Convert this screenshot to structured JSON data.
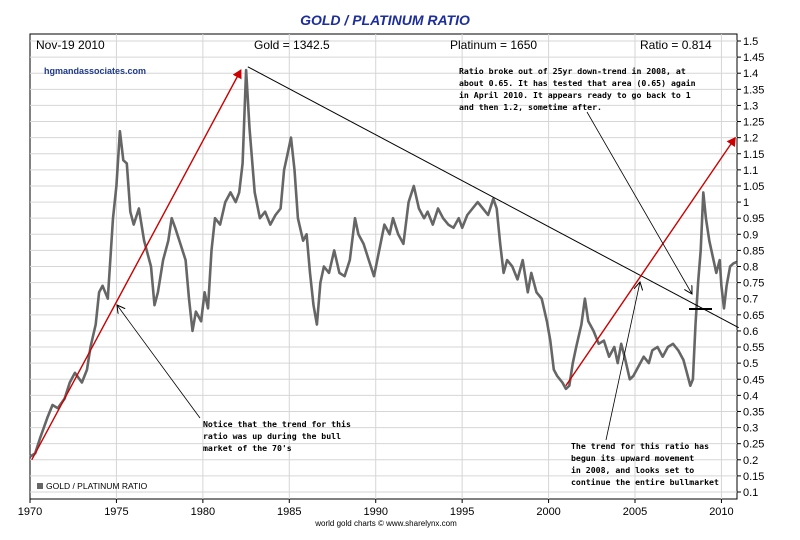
{
  "chart_data": {
    "type": "line",
    "title": "GOLD / PLATINUM RATIO",
    "header": {
      "date": "Nov-19  2010",
      "gold": "Gold = 1342.5",
      "platinum": "Platinum = 1650",
      "ratio": "Ratio = 0.814"
    },
    "website": "hgmandassociates.com",
    "credit": "world gold charts © www.sharelynx.com",
    "legend": "GOLD / PLATINUM RATIO",
    "xlim": [
      1970,
      2010.9
    ],
    "ylim": [
      0.1,
      1.5
    ],
    "x_ticks": [
      1970,
      1975,
      1980,
      1985,
      1990,
      1995,
      2000,
      2005,
      2010
    ],
    "y_ticks": [
      0.1,
      0.15,
      0.2,
      0.25,
      0.3,
      0.35,
      0.4,
      0.45,
      0.5,
      0.55,
      0.6,
      0.65,
      0.7,
      0.75,
      0.8,
      0.85,
      0.9,
      0.95,
      1,
      1.05,
      1.1,
      1.15,
      1.2,
      1.25,
      1.3,
      1.35,
      1.4,
      1.45,
      1.5
    ],
    "y_tick_labels": [
      "0.1",
      "0.15",
      "0.2",
      "0.25",
      "0.3",
      "0.35",
      "0.4",
      "0.45",
      "0.5",
      "0.55",
      "0.6",
      "0.65",
      "0.7",
      "0.75",
      "0.8",
      "0.85",
      "0.9",
      "0.95",
      "1",
      "1.05",
      "1.1",
      "1.15",
      "1.2",
      "1.25",
      "1.3",
      "1.35",
      "1.4",
      "1.45",
      "1.5"
    ],
    "series": [
      {
        "name": "GOLD / PLATINUM RATIO",
        "color": "#666666",
        "points": [
          [
            1970.0,
            0.21
          ],
          [
            1970.3,
            0.22
          ],
          [
            1970.6,
            0.27
          ],
          [
            1971.0,
            0.33
          ],
          [
            1971.3,
            0.37
          ],
          [
            1971.6,
            0.36
          ],
          [
            1972.0,
            0.39
          ],
          [
            1972.3,
            0.44
          ],
          [
            1972.6,
            0.47
          ],
          [
            1973.0,
            0.44
          ],
          [
            1973.3,
            0.48
          ],
          [
            1973.5,
            0.55
          ],
          [
            1973.8,
            0.62
          ],
          [
            1974.0,
            0.72
          ],
          [
            1974.2,
            0.74
          ],
          [
            1974.5,
            0.7
          ],
          [
            1974.8,
            0.95
          ],
          [
            1975.0,
            1.05
          ],
          [
            1975.2,
            1.22
          ],
          [
            1975.4,
            1.13
          ],
          [
            1975.6,
            1.12
          ],
          [
            1975.8,
            0.97
          ],
          [
            1976.0,
            0.93
          ],
          [
            1976.3,
            0.98
          ],
          [
            1976.6,
            0.88
          ],
          [
            1977.0,
            0.8
          ],
          [
            1977.2,
            0.68
          ],
          [
            1977.4,
            0.72
          ],
          [
            1977.7,
            0.82
          ],
          [
            1978.0,
            0.88
          ],
          [
            1978.2,
            0.95
          ],
          [
            1978.4,
            0.92
          ],
          [
            1978.7,
            0.87
          ],
          [
            1979.0,
            0.82
          ],
          [
            1979.2,
            0.7
          ],
          [
            1979.4,
            0.6
          ],
          [
            1979.6,
            0.66
          ],
          [
            1979.9,
            0.63
          ],
          [
            1980.1,
            0.72
          ],
          [
            1980.3,
            0.67
          ],
          [
            1980.5,
            0.85
          ],
          [
            1980.7,
            0.95
          ],
          [
            1981.0,
            0.93
          ],
          [
            1981.3,
            1.0
          ],
          [
            1981.6,
            1.03
          ],
          [
            1981.9,
            1.0
          ],
          [
            1982.1,
            1.03
          ],
          [
            1982.3,
            1.12
          ],
          [
            1982.5,
            1.41
          ],
          [
            1982.7,
            1.23
          ],
          [
            1983.0,
            1.03
          ],
          [
            1983.3,
            0.95
          ],
          [
            1983.6,
            0.97
          ],
          [
            1983.9,
            0.93
          ],
          [
            1984.2,
            0.96
          ],
          [
            1984.5,
            0.98
          ],
          [
            1984.7,
            1.1
          ],
          [
            1984.9,
            1.15
          ],
          [
            1985.1,
            1.2
          ],
          [
            1985.3,
            1.1
          ],
          [
            1985.5,
            0.95
          ],
          [
            1985.8,
            0.88
          ],
          [
            1986.0,
            0.9
          ],
          [
            1986.2,
            0.78
          ],
          [
            1986.4,
            0.68
          ],
          [
            1986.6,
            0.62
          ],
          [
            1986.8,
            0.75
          ],
          [
            1987.0,
            0.8
          ],
          [
            1987.3,
            0.78
          ],
          [
            1987.6,
            0.85
          ],
          [
            1987.9,
            0.78
          ],
          [
            1988.2,
            0.77
          ],
          [
            1988.5,
            0.82
          ],
          [
            1988.8,
            0.95
          ],
          [
            1989.0,
            0.9
          ],
          [
            1989.3,
            0.87
          ],
          [
            1989.6,
            0.82
          ],
          [
            1989.9,
            0.77
          ],
          [
            1990.2,
            0.85
          ],
          [
            1990.5,
            0.93
          ],
          [
            1990.8,
            0.9
          ],
          [
            1991.0,
            0.95
          ],
          [
            1991.3,
            0.9
          ],
          [
            1991.6,
            0.87
          ],
          [
            1991.9,
            1.0
          ],
          [
            1992.2,
            1.05
          ],
          [
            1992.5,
            0.98
          ],
          [
            1992.8,
            0.95
          ],
          [
            1993.0,
            0.97
          ],
          [
            1993.3,
            0.93
          ],
          [
            1993.6,
            0.98
          ],
          [
            1993.9,
            0.95
          ],
          [
            1994.2,
            0.93
          ],
          [
            1994.5,
            0.92
          ],
          [
            1994.8,
            0.95
          ],
          [
            1995.0,
            0.92
          ],
          [
            1995.3,
            0.96
          ],
          [
            1995.6,
            0.98
          ],
          [
            1995.9,
            1.0
          ],
          [
            1996.2,
            0.98
          ],
          [
            1996.5,
            0.96
          ],
          [
            1996.8,
            1.01
          ],
          [
            1997.0,
            0.98
          ],
          [
            1997.2,
            0.87
          ],
          [
            1997.4,
            0.78
          ],
          [
            1997.6,
            0.82
          ],
          [
            1997.9,
            0.8
          ],
          [
            1998.2,
            0.76
          ],
          [
            1998.5,
            0.82
          ],
          [
            1998.8,
            0.72
          ],
          [
            1999.0,
            0.78
          ],
          [
            1999.3,
            0.72
          ],
          [
            1999.6,
            0.7
          ],
          [
            1999.9,
            0.63
          ],
          [
            2000.1,
            0.57
          ],
          [
            2000.3,
            0.48
          ],
          [
            2000.5,
            0.46
          ],
          [
            2000.8,
            0.44
          ],
          [
            2001.0,
            0.42
          ],
          [
            2001.2,
            0.43
          ],
          [
            2001.4,
            0.5
          ],
          [
            2001.6,
            0.55
          ],
          [
            2001.9,
            0.62
          ],
          [
            2002.1,
            0.7
          ],
          [
            2002.3,
            0.63
          ],
          [
            2002.6,
            0.6
          ],
          [
            2002.9,
            0.56
          ],
          [
            2003.2,
            0.57
          ],
          [
            2003.5,
            0.52
          ],
          [
            2003.8,
            0.55
          ],
          [
            2004.0,
            0.5
          ],
          [
            2004.2,
            0.56
          ],
          [
            2004.4,
            0.52
          ],
          [
            2004.7,
            0.45
          ],
          [
            2004.9,
            0.46
          ],
          [
            2005.2,
            0.49
          ],
          [
            2005.5,
            0.52
          ],
          [
            2005.8,
            0.5
          ],
          [
            2006.0,
            0.54
          ],
          [
            2006.3,
            0.55
          ],
          [
            2006.6,
            0.52
          ],
          [
            2006.9,
            0.55
          ],
          [
            2007.2,
            0.56
          ],
          [
            2007.5,
            0.54
          ],
          [
            2007.8,
            0.51
          ],
          [
            2008.0,
            0.47
          ],
          [
            2008.2,
            0.43
          ],
          [
            2008.35,
            0.45
          ],
          [
            2008.5,
            0.62
          ],
          [
            2008.65,
            0.75
          ],
          [
            2008.8,
            0.85
          ],
          [
            2008.95,
            1.03
          ],
          [
            2009.1,
            0.95
          ],
          [
            2009.3,
            0.88
          ],
          [
            2009.5,
            0.83
          ],
          [
            2009.7,
            0.78
          ],
          [
            2009.9,
            0.82
          ],
          [
            2010.0,
            0.74
          ],
          [
            2010.15,
            0.67
          ],
          [
            2010.3,
            0.74
          ],
          [
            2010.5,
            0.8
          ],
          [
            2010.7,
            0.81
          ],
          [
            2010.88,
            0.814
          ]
        ]
      }
    ],
    "annotations": {
      "top_note": [
        "Ratio broke out of 25yr down-trend in 2008, at",
        "about 0.65. It has tested that area (0.65) again",
        "in April 2010. It appears ready to go back to 1",
        "and then 1.2, sometime after."
      ],
      "left_note": [
        "Notice that the trend for this",
        "ratio was up during the bull",
        "market of the 70's"
      ],
      "bottom_note": [
        "The trend for this ratio has",
        "begun its upward movement",
        "in 2008, and looks set to",
        "continue the entire bullmarket"
      ]
    },
    "trend_lines": [
      {
        "color": "#cc0000",
        "from": [
          1970.1,
          0.2
        ],
        "to": [
          1982.2,
          1.41
        ],
        "arrow": true
      },
      {
        "color": "#000000",
        "from": [
          1982.6,
          1.42
        ],
        "to": [
          2011.0,
          0.61
        ],
        "arrow": false
      },
      {
        "color": "#cc0000",
        "from": [
          2001.0,
          0.43
        ],
        "to": [
          2010.8,
          1.2
        ],
        "arrow": true
      }
    ]
  }
}
